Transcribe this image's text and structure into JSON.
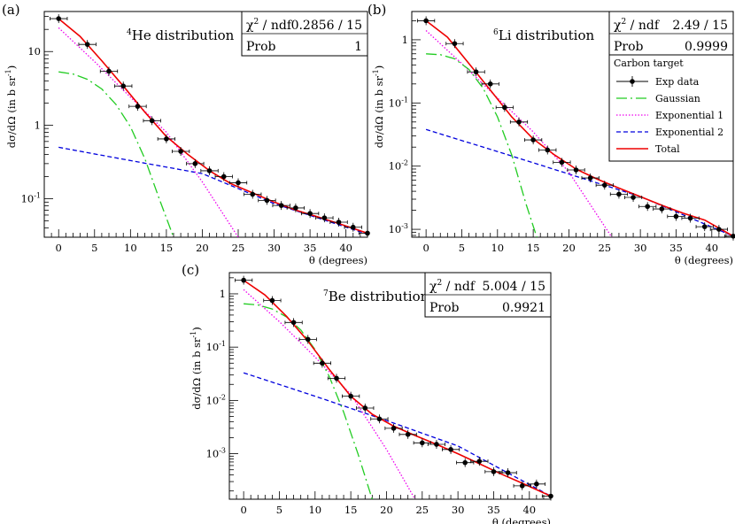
{
  "chart_data": [
    {
      "type": "scatter",
      "panel_label": "(a)",
      "nuclide": {
        "mass": "4",
        "symbol": "He distribution"
      },
      "xlabel": "θ (degrees)",
      "ylabel": "dσ/dΩ (in b sr",
      "ylabel_sup": "-1",
      "ylabel_close": ")",
      "xlim": [
        -2,
        43
      ],
      "ylim": [
        0.03,
        35
      ],
      "yscale": "log",
      "xticks": [
        0,
        5,
        10,
        15,
        20,
        25,
        30,
        35,
        40
      ],
      "xtick_labels": [
        "0",
        "5",
        "10",
        "15",
        "20",
        "25",
        "30",
        "35",
        "40"
      ],
      "yticks": [
        0.1,
        1,
        10
      ],
      "ytick_labels": [
        {
          "base": "10",
          "exp": "-1"
        },
        {
          "base": "1",
          "exp": ""
        },
        {
          "base": "10",
          "exp": ""
        }
      ],
      "fit_box": {
        "chi2_label": "χ",
        "chi2_sup": "2",
        "chi2_rest": " / ndf",
        "chi2_value": "0.2856 / 15",
        "prob_label": "Prob",
        "prob_value": "1"
      },
      "series": [
        {
          "name": "Exp data",
          "kind": "points",
          "color": "#000000",
          "x": [
            0,
            4,
            7,
            9,
            11,
            13,
            15,
            17,
            19,
            21,
            23,
            25,
            27,
            29,
            31,
            33,
            35,
            37,
            39,
            41,
            43
          ],
          "y": [
            28,
            12.5,
            5.4,
            3.4,
            1.8,
            1.15,
            0.65,
            0.44,
            0.3,
            0.24,
            0.2,
            0.165,
            0.115,
            0.095,
            0.081,
            0.075,
            0.063,
            0.055,
            0.048,
            0.041,
            0.034
          ],
          "xerr": 1.2
        },
        {
          "name": "Gaussian",
          "kind": "line",
          "color": "#22cc22",
          "x": [
            0,
            2,
            4,
            6,
            8,
            10,
            12,
            14,
            16
          ],
          "y": [
            5.3,
            4.95,
            4.2,
            3.1,
            1.9,
            0.95,
            0.35,
            0.1,
            0.03
          ]
        },
        {
          "name": "Exponential 1",
          "kind": "line",
          "color": "#ee00ee",
          "x": [
            0,
            5,
            10,
            15,
            20,
            25
          ],
          "y": [
            21,
            7.3,
            2.4,
            0.8,
            0.17,
            0.03
          ]
        },
        {
          "name": "Exponential 2",
          "kind": "line",
          "color": "#0000dd",
          "x": [
            0,
            10,
            20,
            30,
            43
          ],
          "y": [
            0.5,
            0.33,
            0.22,
            0.086,
            0.033
          ]
        },
        {
          "name": "Total",
          "kind": "line",
          "color": "#ee0000",
          "x": [
            0,
            3,
            6,
            9,
            12,
            15,
            18,
            21,
            24,
            27,
            30,
            33,
            36,
            39,
            43
          ],
          "y": [
            28,
            16,
            7.5,
            3.4,
            1.5,
            0.7,
            0.4,
            0.24,
            0.16,
            0.12,
            0.09,
            0.07,
            0.057,
            0.046,
            0.034
          ]
        }
      ]
    },
    {
      "type": "scatter",
      "panel_label": "(b)",
      "nuclide": {
        "mass": "6",
        "symbol": "Li distribution"
      },
      "xlabel": "θ (degrees)",
      "ylabel": "dσ/dΩ (in b sr",
      "ylabel_sup": "-1",
      "ylabel_close": ")",
      "xlim": [
        -2,
        43
      ],
      "ylim": [
        0.00075,
        2.8
      ],
      "yscale": "log",
      "xticks": [
        0,
        5,
        10,
        15,
        20,
        25,
        30,
        35,
        40
      ],
      "xtick_labels": [
        "0",
        "5",
        "10",
        "15",
        "20",
        "25",
        "30",
        "35",
        "40"
      ],
      "yticks": [
        0.001,
        0.01,
        0.1,
        1
      ],
      "ytick_labels": [
        {
          "base": "10",
          "exp": "-3"
        },
        {
          "base": "10",
          "exp": "-2"
        },
        {
          "base": "10",
          "exp": "-1"
        },
        {
          "base": "1",
          "exp": ""
        }
      ],
      "fit_box": {
        "chi2_label": "χ",
        "chi2_sup": "2",
        "chi2_rest": " / ndf",
        "chi2_value": "2.49 / 15",
        "prob_label": "Prob",
        "prob_value": "0.9999"
      },
      "legend": {
        "title": "Carbon target",
        "entries": [
          "Exp data",
          "Gaussian",
          "Exponential 1",
          "Exponential 2",
          "Total"
        ]
      },
      "series": [
        {
          "name": "Exp data",
          "kind": "points",
          "color": "#000000",
          "x": [
            0,
            4,
            7,
            9,
            11,
            13,
            15,
            17,
            19,
            21,
            23,
            25,
            27,
            29,
            31,
            33,
            35,
            37,
            39,
            41,
            43
          ],
          "y": [
            2.0,
            0.87,
            0.31,
            0.2,
            0.085,
            0.05,
            0.026,
            0.018,
            0.0115,
            0.0087,
            0.0065,
            0.005,
            0.0036,
            0.0032,
            0.0023,
            0.0021,
            0.0016,
            0.0015,
            0.0011,
            0.001,
            0.00078
          ],
          "xerr": 1.2
        },
        {
          "name": "Gaussian",
          "kind": "line",
          "color": "#22cc22",
          "x": [
            0,
            2,
            4,
            6,
            8,
            10,
            12,
            14,
            15.5
          ],
          "y": [
            0.6,
            0.58,
            0.5,
            0.34,
            0.17,
            0.06,
            0.015,
            0.0025,
            0.00075
          ]
        },
        {
          "name": "Exponential 1",
          "kind": "line",
          "color": "#ee00ee",
          "x": [
            0,
            5,
            10,
            15,
            20,
            26
          ],
          "y": [
            1.4,
            0.42,
            0.12,
            0.035,
            0.008,
            0.00075
          ]
        },
        {
          "name": "Exponential 2",
          "kind": "line",
          "color": "#0000dd",
          "x": [
            0,
            10,
            20,
            30,
            43
          ],
          "y": [
            0.038,
            0.017,
            0.0075,
            0.0033,
            0.00078
          ]
        },
        {
          "name": "Total",
          "kind": "line",
          "color": "#ee0000",
          "x": [
            0,
            3,
            6,
            9,
            12,
            15,
            18,
            21,
            24,
            27,
            30,
            33,
            36,
            39,
            43
          ],
          "y": [
            2.0,
            1.1,
            0.42,
            0.16,
            0.06,
            0.027,
            0.015,
            0.009,
            0.0062,
            0.0045,
            0.0033,
            0.0024,
            0.0018,
            0.0014,
            0.00078
          ]
        }
      ]
    },
    {
      "type": "scatter",
      "panel_label": "(c)",
      "nuclide": {
        "mass": "7",
        "symbol": "Be distribution"
      },
      "xlabel": "θ (degrees)",
      "ylabel": "dσ/dΩ (in b sr",
      "ylabel_sup": "-1",
      "ylabel_close": ")",
      "xlim": [
        -2,
        43
      ],
      "ylim": [
        0.00014,
        2.5
      ],
      "yscale": "log",
      "xticks": [
        0,
        5,
        10,
        15,
        20,
        25,
        30,
        35,
        40
      ],
      "xtick_labels": [
        "0",
        "5",
        "10",
        "15",
        "20",
        "25",
        "30",
        "35",
        "40"
      ],
      "yticks": [
        0.001,
        0.01,
        0.1,
        1
      ],
      "ytick_labels": [
        {
          "base": "10",
          "exp": "-3"
        },
        {
          "base": "10",
          "exp": "-2"
        },
        {
          "base": "10",
          "exp": "-1"
        },
        {
          "base": "1",
          "exp": ""
        }
      ],
      "fit_box": {
        "chi2_label": "χ",
        "chi2_sup": "2",
        "chi2_rest": " / ndf",
        "chi2_value": "5.004 / 15",
        "prob_label": "Prob",
        "prob_value": "0.9921"
      },
      "series": [
        {
          "name": "Exp data",
          "kind": "points",
          "color": "#000000",
          "x": [
            0,
            4,
            7,
            9,
            11,
            13,
            15,
            17,
            19,
            21,
            23,
            25,
            27,
            29,
            31,
            33,
            35,
            37,
            39,
            41,
            43
          ],
          "y": [
            1.8,
            0.75,
            0.29,
            0.14,
            0.05,
            0.026,
            0.012,
            0.0072,
            0.0045,
            0.003,
            0.0023,
            0.0016,
            0.0015,
            0.0012,
            0.00068,
            0.00072,
            0.00046,
            0.00044,
            0.00025,
            0.00027,
            0.00016
          ],
          "xerr": 1.2
        },
        {
          "name": "Gaussian",
          "kind": "line",
          "color": "#22cc22",
          "x": [
            0,
            2,
            4,
            6,
            8,
            10,
            12,
            14,
            16,
            18
          ],
          "y": [
            0.65,
            0.62,
            0.52,
            0.37,
            0.21,
            0.09,
            0.028,
            0.006,
            0.001,
            0.00014
          ]
        },
        {
          "name": "Exponential 1",
          "kind": "line",
          "color": "#ee00ee",
          "x": [
            0,
            5,
            10,
            15,
            20,
            24
          ],
          "y": [
            1.2,
            0.3,
            0.065,
            0.013,
            0.0012,
            0.00014
          ]
        },
        {
          "name": "Exponential 2",
          "kind": "line",
          "color": "#0000dd",
          "x": [
            0,
            10,
            20,
            30,
            43
          ],
          "y": [
            0.033,
            0.012,
            0.0042,
            0.0014,
            0.00016
          ]
        },
        {
          "name": "Total",
          "kind": "line",
          "color": "#ee0000",
          "x": [
            0,
            3,
            6,
            9,
            12,
            15,
            18,
            21,
            24,
            27,
            30,
            33,
            36,
            39,
            43
          ],
          "y": [
            1.8,
            0.95,
            0.38,
            0.13,
            0.038,
            0.012,
            0.0055,
            0.0033,
            0.0022,
            0.0015,
            0.001,
            0.00065,
            0.00042,
            0.00028,
            0.00016
          ]
        }
      ]
    }
  ]
}
